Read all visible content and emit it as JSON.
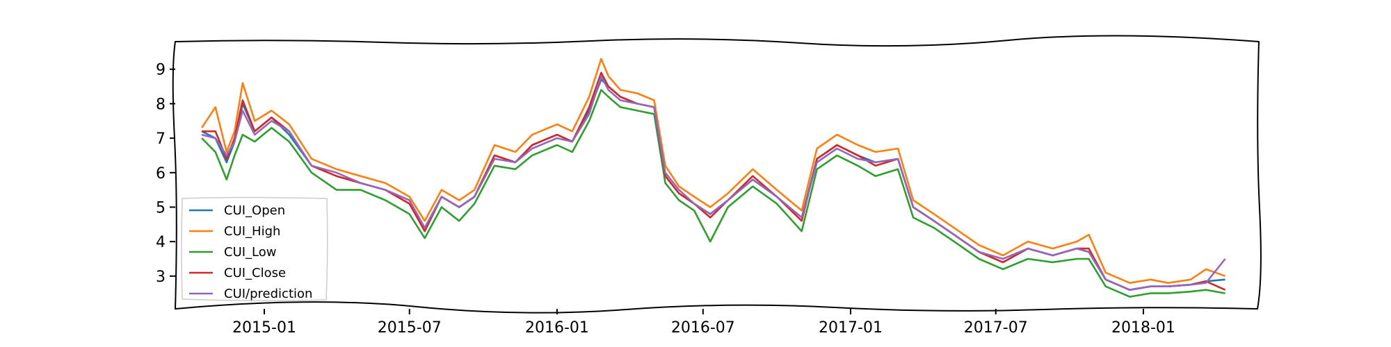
{
  "chart_data": {
    "type": "line",
    "title": "",
    "xlabel": "",
    "ylabel": "",
    "xlim": [
      "2014-09-12",
      "2018-05-25"
    ],
    "ylim": [
      2.05,
      9.8
    ],
    "yticks": [
      3,
      4,
      5,
      6,
      7,
      8,
      9
    ],
    "xticks": [
      "2015-01",
      "2015-07",
      "2016-01",
      "2016-07",
      "2017-01",
      "2017-07",
      "2018-01"
    ],
    "grid": false,
    "legend_position": "lower-left",
    "x": [
      "2014-10-15",
      "2014-11-01",
      "2014-11-15",
      "2014-11-25",
      "2014-12-05",
      "2014-12-20",
      "2015-01-10",
      "2015-02-01",
      "2015-03-01",
      "2015-04-01",
      "2015-05-01",
      "2015-06-01",
      "2015-07-01",
      "2015-07-20",
      "2015-08-10",
      "2015-09-01",
      "2015-09-20",
      "2015-10-15",
      "2015-11-10",
      "2015-12-01",
      "2016-01-01",
      "2016-01-20",
      "2016-02-10",
      "2016-02-25",
      "2016-03-05",
      "2016-03-20",
      "2016-04-10",
      "2016-05-01",
      "2016-05-15",
      "2016-06-01",
      "2016-06-20",
      "2016-07-10",
      "2016-08-01",
      "2016-09-01",
      "2016-10-01",
      "2016-11-01",
      "2016-11-20",
      "2016-12-15",
      "2017-01-10",
      "2017-02-01",
      "2017-03-01",
      "2017-03-20",
      "2017-04-15",
      "2017-05-10",
      "2017-06-10",
      "2017-07-10",
      "2017-08-10",
      "2017-09-10",
      "2017-10-10",
      "2017-10-25",
      "2017-11-15",
      "2017-12-15",
      "2018-01-10",
      "2018-02-01",
      "2018-03-01",
      "2018-03-20",
      "2018-04-13"
    ],
    "series": [
      {
        "name": "CUI_Open",
        "color": "#1f77b4",
        "values": [
          7.2,
          7.0,
          6.3,
          6.9,
          8.0,
          7.2,
          7.6,
          7.1,
          6.2,
          5.9,
          5.7,
          5.5,
          5.1,
          4.4,
          5.3,
          5.0,
          5.3,
          6.5,
          6.3,
          6.8,
          7.1,
          6.9,
          7.8,
          8.7,
          8.5,
          8.2,
          8.0,
          7.9,
          5.9,
          5.4,
          5.1,
          4.8,
          5.2,
          5.8,
          5.3,
          4.7,
          6.4,
          6.8,
          6.5,
          6.3,
          6.4,
          5.0,
          4.6,
          4.2,
          3.7,
          3.4,
          3.8,
          3.6,
          3.8,
          3.7,
          2.9,
          2.6,
          2.7,
          2.7,
          2.75,
          2.85,
          2.9
        ]
      },
      {
        "name": "CUI_High",
        "color": "#ff7f0e",
        "values": [
          7.3,
          7.9,
          6.6,
          7.2,
          8.6,
          7.5,
          7.8,
          7.4,
          6.4,
          6.1,
          5.9,
          5.7,
          5.3,
          4.6,
          5.5,
          5.2,
          5.5,
          6.8,
          6.6,
          7.1,
          7.4,
          7.2,
          8.2,
          9.3,
          8.8,
          8.4,
          8.3,
          8.1,
          6.2,
          5.6,
          5.3,
          5.0,
          5.4,
          6.1,
          5.5,
          4.9,
          6.7,
          7.1,
          6.8,
          6.6,
          6.7,
          5.2,
          4.8,
          4.4,
          3.9,
          3.6,
          4.0,
          3.8,
          4.0,
          4.2,
          3.1,
          2.8,
          2.9,
          2.8,
          2.9,
          3.2,
          3.0
        ]
      },
      {
        "name": "CUI_Low",
        "color": "#2ca02c",
        "values": [
          7.0,
          6.6,
          5.8,
          6.5,
          7.1,
          6.9,
          7.3,
          6.9,
          6.0,
          5.5,
          5.5,
          5.2,
          4.8,
          4.1,
          5.0,
          4.6,
          5.1,
          6.2,
          6.1,
          6.5,
          6.8,
          6.6,
          7.5,
          8.4,
          8.2,
          7.9,
          7.8,
          7.7,
          5.7,
          5.2,
          4.9,
          4.0,
          5.0,
          5.6,
          5.1,
          4.3,
          6.1,
          6.5,
          6.2,
          5.9,
          6.1,
          4.7,
          4.4,
          4.0,
          3.5,
          3.2,
          3.5,
          3.4,
          3.5,
          3.5,
          2.7,
          2.4,
          2.5,
          2.5,
          2.55,
          2.6,
          2.5
        ]
      },
      {
        "name": "CUI_Close",
        "color": "#d62728",
        "values": [
          7.2,
          7.2,
          6.4,
          7.0,
          8.1,
          7.2,
          7.6,
          7.2,
          6.2,
          5.9,
          5.7,
          5.5,
          5.1,
          4.3,
          5.3,
          5.0,
          5.3,
          6.5,
          6.3,
          6.8,
          7.1,
          6.9,
          7.9,
          8.9,
          8.5,
          8.2,
          8.0,
          7.9,
          5.9,
          5.4,
          5.1,
          4.7,
          5.2,
          5.9,
          5.3,
          4.6,
          6.4,
          6.8,
          6.5,
          6.2,
          6.4,
          5.0,
          4.6,
          4.2,
          3.7,
          3.4,
          3.8,
          3.6,
          3.8,
          3.8,
          2.9,
          2.6,
          2.7,
          2.7,
          2.75,
          2.85,
          2.6
        ]
      },
      {
        "name": "CUI/prediction",
        "color": "#9467bd",
        "values": [
          7.1,
          7.0,
          6.5,
          6.9,
          7.8,
          7.1,
          7.5,
          7.2,
          6.2,
          6.0,
          5.7,
          5.5,
          5.2,
          4.4,
          5.3,
          5.0,
          5.3,
          6.4,
          6.3,
          6.7,
          7.0,
          6.9,
          7.7,
          8.8,
          8.4,
          8.1,
          8.0,
          7.9,
          6.0,
          5.5,
          5.1,
          4.8,
          5.2,
          5.8,
          5.3,
          4.7,
          6.3,
          6.7,
          6.4,
          6.3,
          6.4,
          5.0,
          4.6,
          4.2,
          3.7,
          3.5,
          3.8,
          3.6,
          3.8,
          3.7,
          2.9,
          2.6,
          2.7,
          2.7,
          2.75,
          2.8,
          3.5
        ]
      }
    ]
  }
}
